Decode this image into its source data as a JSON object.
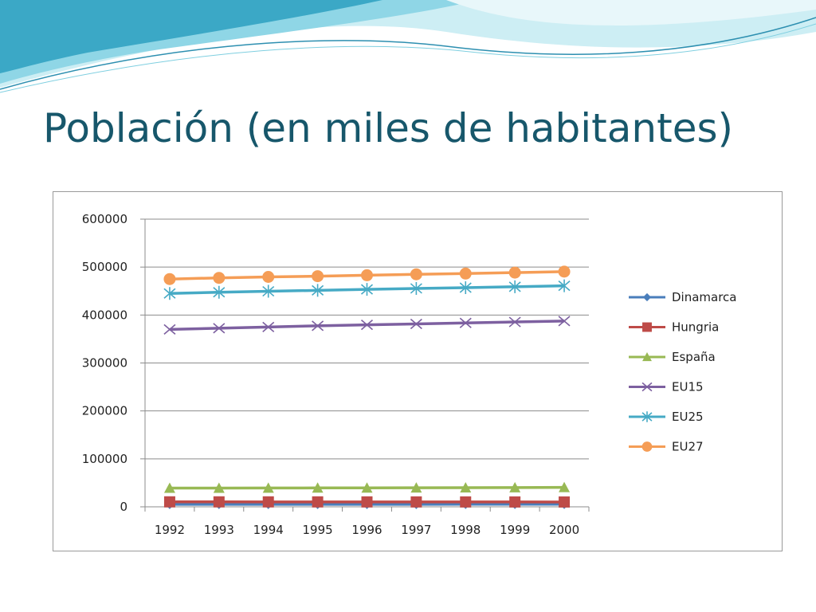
{
  "slide": {
    "title": "Población (en miles de habitantes)"
  },
  "colors": {
    "title": "#17576b",
    "wave_light": "#bfe7ef",
    "wave_mid": "#7fcfe0",
    "wave_dark": "#2ea3bf"
  },
  "chart_data": {
    "type": "line",
    "title": "",
    "xlabel": "",
    "ylabel": "",
    "x": [
      "1992",
      "1993",
      "1994",
      "1995",
      "1996",
      "1997",
      "1998",
      "1999",
      "2000"
    ],
    "ylim": [
      0,
      600000
    ],
    "yticks": [
      0,
      100000,
      200000,
      300000,
      400000,
      500000,
      600000
    ],
    "ytick_labels": [
      "0",
      "100000",
      "200000",
      "300000",
      "400000",
      "500000",
      "600000"
    ],
    "grid": true,
    "legend_position": "right",
    "series": [
      {
        "name": "Dinamarca",
        "color": "#4a7ebb",
        "marker": "diamond",
        "values": [
          5170,
          5190,
          5200,
          5220,
          5250,
          5280,
          5300,
          5310,
          5330
        ]
      },
      {
        "name": "Hungria",
        "color": "#be4b48",
        "marker": "square",
        "values": [
          10340,
          10310,
          10280,
          10250,
          10210,
          10170,
          10140,
          10100,
          10060
        ]
      },
      {
        "name": "España",
        "color": "#98b954",
        "marker": "triangle",
        "values": [
          39000,
          39100,
          39200,
          39400,
          39500,
          39700,
          39900,
          40200,
          40500
        ]
      },
      {
        "name": "EU15",
        "color": "#7d60a0",
        "marker": "x",
        "values": [
          370000,
          372500,
          375000,
          377500,
          379500,
          381500,
          383500,
          385500,
          387500
        ]
      },
      {
        "name": "EU25",
        "color": "#46aac5",
        "marker": "star",
        "values": [
          445000,
          447500,
          449500,
          451500,
          453500,
          455500,
          457000,
          459000,
          461000
        ]
      },
      {
        "name": "EU27",
        "color": "#f59d56",
        "marker": "circle",
        "values": [
          475000,
          477500,
          479500,
          481000,
          483000,
          485000,
          486500,
          488500,
          490500
        ]
      }
    ]
  }
}
